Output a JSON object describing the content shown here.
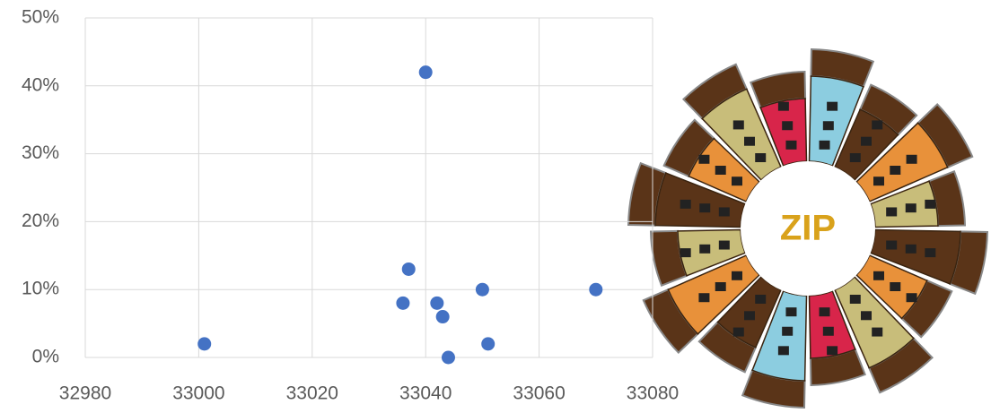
{
  "chart_data": {
    "type": "scatter",
    "x": [
      33001,
      33040,
      33037,
      33036,
      33042,
      33043,
      33050,
      33044,
      33051,
      33070
    ],
    "values": [
      2,
      42,
      13,
      8,
      8,
      6,
      10,
      0,
      2,
      10
    ],
    "color": "#4472c4",
    "xlim": [
      32980,
      33080
    ],
    "xticks": [
      32980,
      33000,
      33020,
      33040,
      33060,
      33080
    ],
    "ylim": [
      0,
      50
    ],
    "yticks": [
      {
        "value": 0,
        "label": "0%"
      },
      {
        "value": 10,
        "label": "10%"
      },
      {
        "value": 20,
        "label": "20%"
      },
      {
        "value": 30,
        "label": "30%"
      },
      {
        "value": 40,
        "label": "40%"
      },
      {
        "value": 50,
        "label": "50%"
      }
    ],
    "grid": true
  },
  "badge": {
    "text": "ZIP"
  }
}
